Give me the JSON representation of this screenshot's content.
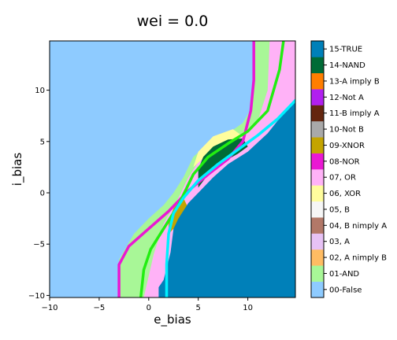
{
  "chart_data": {
    "type": "heatmap",
    "title": "wei = 0.0",
    "xlabel": "e_bias",
    "ylabel": "i_bias",
    "xlim": [
      -10,
      14.8
    ],
    "ylim": [
      -10.2,
      14.8
    ],
    "xticks": [
      -10,
      -5,
      0,
      5,
      10
    ],
    "yticks": [
      -10,
      -5,
      0,
      5,
      10
    ],
    "xtick_labels": [
      "−10",
      "−5",
      "0",
      "5",
      "10"
    ],
    "ytick_labels": [
      "−10",
      "−5",
      "0",
      "5",
      "10"
    ],
    "colorbar": {
      "placement": "right",
      "labels": [
        {
          "label": "00-False",
          "color": "#8ecbff"
        },
        {
          "label": "01-AND",
          "color": "#a8f797"
        },
        {
          "label": "02, A nimply B",
          "color": "#ffbc63"
        },
        {
          "label": "03, A",
          "color": "#e7c2f5"
        },
        {
          "label": "04, B nimply A",
          "color": "#b27868"
        },
        {
          "label": "05, B",
          "color": "#f6f6f6"
        },
        {
          "label": "06, XOR",
          "color": "#fffd9d"
        },
        {
          "label": "07, OR",
          "color": "#ffb2f7"
        },
        {
          "label": "08-NOR",
          "color": "#ea18d3"
        },
        {
          "label": "09-XNOR",
          "color": "#c4a400"
        },
        {
          "label": "10-Not B",
          "color": "#a9a9a9"
        },
        {
          "label": "11-B imply A",
          "color": "#64260f"
        },
        {
          "label": "12-Not A",
          "color": "#b120ef"
        },
        {
          "label": "13-A imply B",
          "color": "#ff7e00"
        },
        {
          "label": "14-NAND",
          "color": "#006b36"
        },
        {
          "label": "15-TRUE",
          "color": "#0080b9"
        }
      ]
    },
    "regions": [
      {
        "class": "01-AND",
        "points": [
          [
            -3,
            -10.2
          ],
          [
            -3,
            -6.5
          ],
          [
            -1.5,
            -4
          ],
          [
            0,
            -2.5
          ],
          [
            1.5,
            -1.2
          ],
          [
            2.5,
            0
          ],
          [
            3.5,
            1.5
          ],
          [
            4.5,
            3.5
          ],
          [
            6,
            4.8
          ],
          [
            8,
            5.8
          ],
          [
            9.5,
            6.8
          ],
          [
            10.5,
            8.5
          ],
          [
            10.6,
            14.8
          ],
          [
            14.8,
            14.8
          ],
          [
            14.8,
            -10.2
          ]
        ]
      },
      {
        "class": "07, OR",
        "points": [
          [
            -0.5,
            -10.2
          ],
          [
            0.5,
            -6
          ],
          [
            1.5,
            -3
          ],
          [
            3,
            -0.5
          ],
          [
            4,
            1.5
          ],
          [
            5,
            3
          ],
          [
            7,
            4.5
          ],
          [
            9,
            5.5
          ],
          [
            11,
            7
          ],
          [
            12,
            10
          ],
          [
            12.2,
            14.8
          ],
          [
            14.8,
            14.8
          ],
          [
            14.8,
            -10.2
          ]
        ]
      },
      {
        "class": "06, XOR",
        "points": [
          [
            4.5,
            2.5
          ],
          [
            6,
            3.8
          ],
          [
            8,
            4.8
          ],
          [
            9.5,
            5.5
          ],
          [
            8.5,
            6.2
          ],
          [
            6.5,
            5.5
          ],
          [
            5,
            4
          ]
        ]
      },
      {
        "class": "09-XNOR",
        "points": [
          [
            2,
            -4
          ],
          [
            3,
            -3
          ],
          [
            4,
            -1.5
          ],
          [
            3.5,
            -0.5
          ],
          [
            2.5,
            -1.5
          ],
          [
            2,
            -2.8
          ]
        ]
      },
      {
        "class": "14-NAND",
        "points": [
          [
            5,
            0.5
          ],
          [
            6,
            1.8
          ],
          [
            7.5,
            3
          ],
          [
            9,
            3.8
          ],
          [
            10,
            4.5
          ],
          [
            9.5,
            5.3
          ],
          [
            8,
            5.2
          ],
          [
            6.5,
            4.5
          ],
          [
            5.5,
            3.5
          ],
          [
            5,
            2.3
          ]
        ]
      },
      {
        "class": "15-TRUE",
        "points": [
          [
            1,
            -10.2
          ],
          [
            1,
            -9.2
          ],
          [
            1.5,
            -8.5
          ],
          [
            2.2,
            -5.8
          ],
          [
            2.5,
            -3.5
          ],
          [
            3,
            -2.5
          ],
          [
            4,
            -1
          ],
          [
            5,
            0
          ],
          [
            6.5,
            1.5
          ],
          [
            8,
            2.8
          ],
          [
            10,
            4
          ],
          [
            12,
            5.8
          ],
          [
            14.8,
            9.2
          ],
          [
            14.8,
            -10.2
          ]
        ]
      }
    ],
    "series": [
      {
        "color": "#ea18d3",
        "points": [
          [
            -3,
            -10.2
          ],
          [
            -3,
            -7
          ],
          [
            -2,
            -5.2
          ],
          [
            0,
            -3.5
          ],
          [
            2,
            -1.8
          ],
          [
            4,
            0.2
          ],
          [
            6,
            1.8
          ],
          [
            8,
            3.3
          ],
          [
            9.5,
            5
          ],
          [
            10.3,
            8
          ],
          [
            10.6,
            11
          ],
          [
            10.6,
            14.8
          ]
        ]
      },
      {
        "color": "#22ee11",
        "points": [
          [
            -0.8,
            -10.2
          ],
          [
            -0.5,
            -7.5
          ],
          [
            0.2,
            -5.5
          ],
          [
            1.5,
            -3.5
          ],
          [
            3,
            -1.2
          ],
          [
            4.5,
            1.8
          ],
          [
            6,
            3.5
          ],
          [
            8,
            4.8
          ],
          [
            10,
            6
          ],
          [
            12,
            8
          ],
          [
            13.2,
            12
          ],
          [
            13.6,
            14.8
          ]
        ]
      },
      {
        "color": "#00f0ff",
        "points": [
          [
            1.8,
            -10.2
          ],
          [
            1.8,
            -7
          ],
          [
            2,
            -4
          ],
          [
            2.5,
            -2
          ],
          [
            3.5,
            -0.5
          ],
          [
            5,
            1.2
          ],
          [
            7,
            2.8
          ],
          [
            9,
            4.2
          ],
          [
            11,
            5.6
          ],
          [
            13,
            7.2
          ],
          [
            14.8,
            9
          ]
        ]
      }
    ]
  }
}
